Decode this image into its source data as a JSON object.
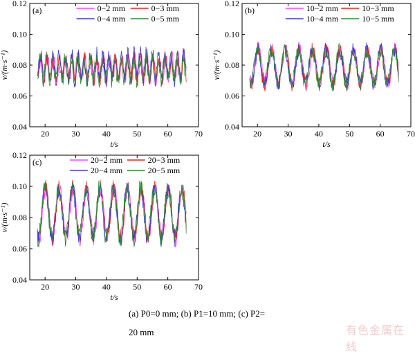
{
  "caption": {
    "line1": "(a) P0=0 mm; (b) P1=10 mm; (c) P2=",
    "line2": "20 mm"
  },
  "watermark": "有色金属在线",
  "chart_data": [
    {
      "type": "line",
      "panel_label": "(a)",
      "xlabel": "t/s",
      "ylabel": "v/(m·s⁻¹)",
      "xlim": [
        15,
        70
      ],
      "ylim": [
        0.04,
        0.12
      ],
      "xticks": [
        20,
        30,
        40,
        50,
        60,
        70
      ],
      "yticks": [
        0.04,
        0.06,
        0.08,
        0.1,
        0.12
      ],
      "legend_position": "top",
      "series": [
        {
          "name": "0−2 mm",
          "color": "#ff44ff",
          "mean": 0.078,
          "amp": 0.007,
          "spread": 0.005,
          "min": 0.067,
          "max": 0.091
        },
        {
          "name": "0−3 mm",
          "color": "#e8251c",
          "mean": 0.078,
          "amp": 0.007,
          "spread": 0.005,
          "min": 0.066,
          "max": 0.092
        },
        {
          "name": "0−4 mm",
          "color": "#3b3bd6",
          "mean": 0.079,
          "amp": 0.008,
          "spread": 0.006,
          "min": 0.064,
          "max": 0.101
        },
        {
          "name": "0−5 mm",
          "color": "#2e8a2e",
          "mean": 0.077,
          "amp": 0.007,
          "spread": 0.005,
          "min": 0.058,
          "max": 0.094
        }
      ]
    },
    {
      "type": "line",
      "panel_label": "(b)",
      "xlabel": "t/s",
      "ylabel": "v/(m·s⁻¹)",
      "xlim": [
        15,
        70
      ],
      "ylim": [
        0.04,
        0.12
      ],
      "xticks": [
        20,
        30,
        40,
        50,
        60,
        70
      ],
      "yticks": [
        0.04,
        0.06,
        0.08,
        0.1,
        0.12
      ],
      "legend_position": "top",
      "series": [
        {
          "name": "10−2 mm",
          "color": "#ff44ff",
          "mean": 0.079,
          "amp": 0.011,
          "spread": 0.005,
          "min": 0.058,
          "max": 0.096
        },
        {
          "name": "10−3 mm",
          "color": "#e8251c",
          "mean": 0.079,
          "amp": 0.011,
          "spread": 0.005,
          "min": 0.06,
          "max": 0.095
        },
        {
          "name": "10−4 mm",
          "color": "#3b3bd6",
          "mean": 0.079,
          "amp": 0.011,
          "spread": 0.005,
          "min": 0.055,
          "max": 0.097
        },
        {
          "name": "10−5 mm",
          "color": "#2e8a2e",
          "mean": 0.079,
          "amp": 0.011,
          "spread": 0.005,
          "min": 0.06,
          "max": 0.1
        }
      ]
    },
    {
      "type": "line",
      "panel_label": "(c)",
      "xlabel": "t/s",
      "ylabel": "v/(m·s⁻¹)",
      "xlim": [
        15,
        70
      ],
      "ylim": [
        0.04,
        0.12
      ],
      "xticks": [
        20,
        30,
        40,
        50,
        60,
        70
      ],
      "yticks": [
        0.04,
        0.06,
        0.08,
        0.1,
        0.12
      ],
      "legend_position": "top",
      "series": [
        {
          "name": "20−2 mm",
          "color": "#ff44ff",
          "mean": 0.083,
          "amp": 0.016,
          "spread": 0.006,
          "min": 0.05,
          "max": 0.101
        },
        {
          "name": "20−3 mm",
          "color": "#e8251c",
          "mean": 0.083,
          "amp": 0.016,
          "spread": 0.006,
          "min": 0.052,
          "max": 0.11
        },
        {
          "name": "20−4 mm",
          "color": "#3b3bd6",
          "mean": 0.083,
          "amp": 0.016,
          "spread": 0.006,
          "min": 0.052,
          "max": 0.102
        },
        {
          "name": "20−5 mm",
          "color": "#2e8a2e",
          "mean": 0.083,
          "amp": 0.016,
          "spread": 0.006,
          "min": 0.045,
          "max": 0.106
        }
      ]
    }
  ]
}
